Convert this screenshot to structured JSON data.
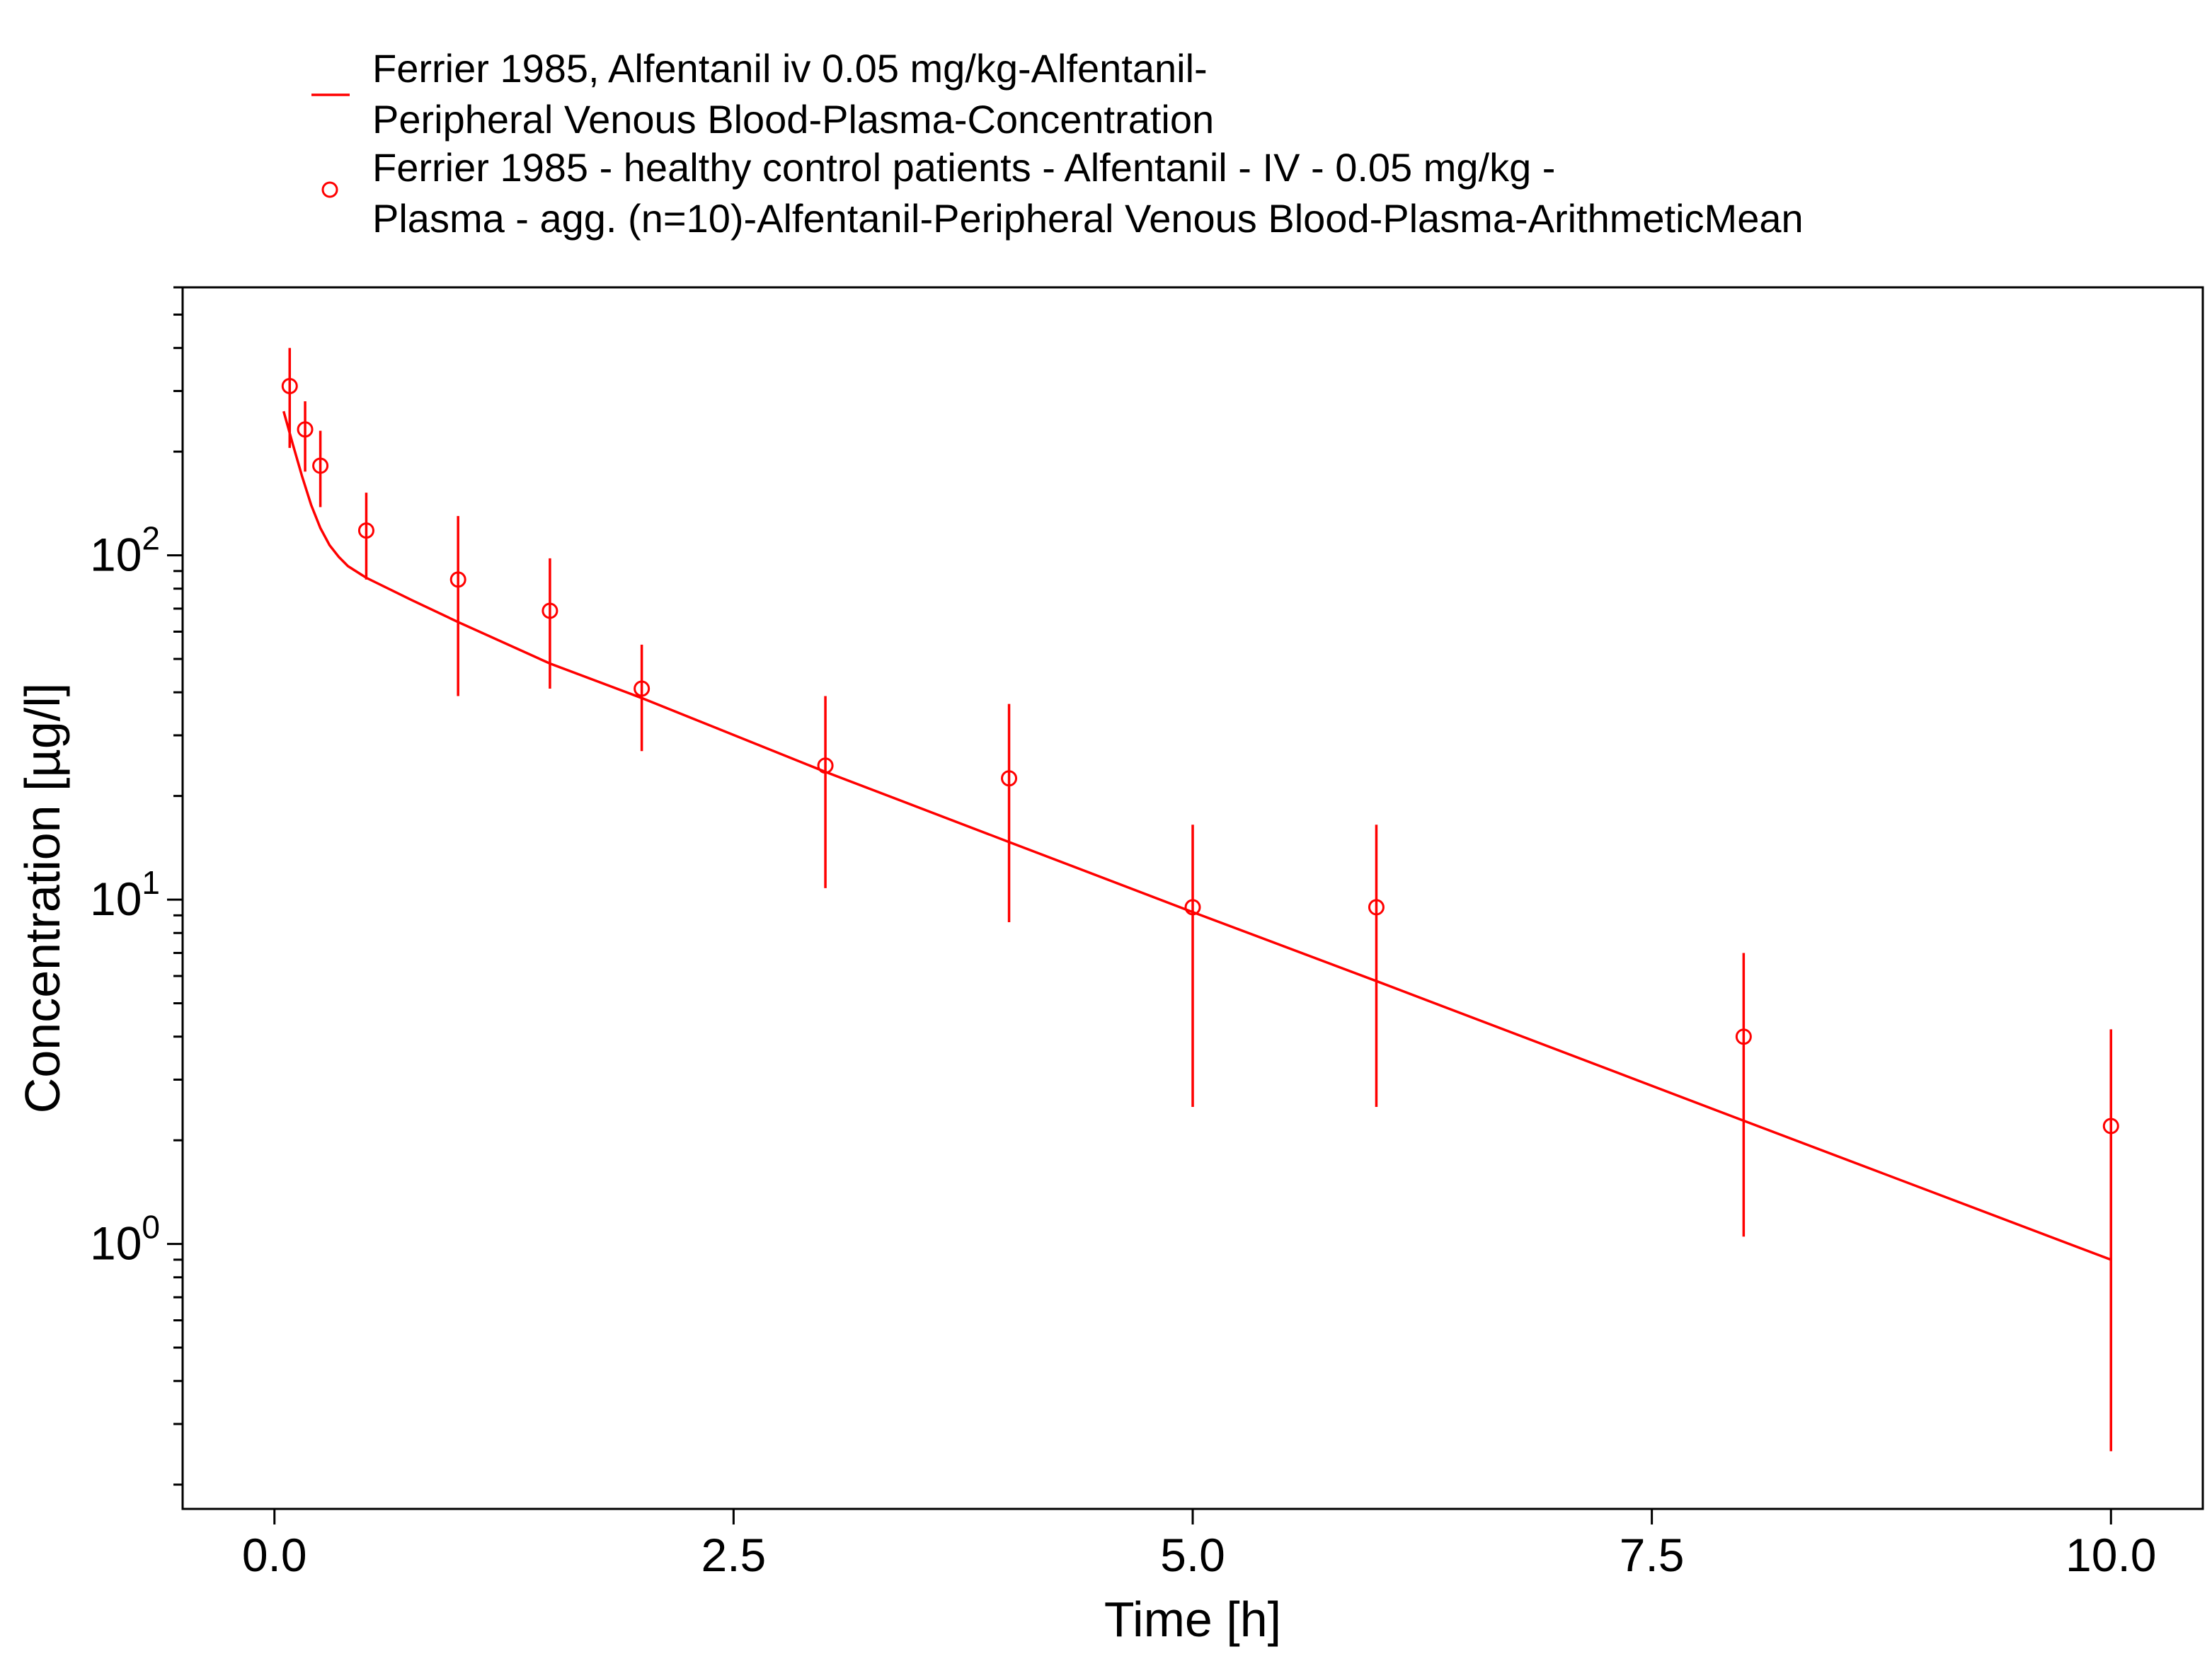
{
  "chart_data": {
    "type": "line",
    "xlabel": "Time [h]",
    "ylabel": "Concentration [µg/l]",
    "xlim": [
      -0.5,
      10.5
    ],
    "ylim": [
      0.17,
      600
    ],
    "yscale": "log",
    "x_ticks": [
      0.0,
      2.5,
      5.0,
      7.5,
      10.0
    ],
    "x_tick_labels": [
      "0.0",
      "2.5",
      "5.0",
      "7.5",
      "10.0"
    ],
    "y_major_ticks": [
      {
        "value": 1,
        "base": "10",
        "exp": "0"
      },
      {
        "value": 10,
        "base": "10",
        "exp": "1"
      },
      {
        "value": 100,
        "base": "10",
        "exp": "2"
      }
    ],
    "grid": false,
    "legend_position": "top",
    "color": "#ff0000",
    "series": [
      {
        "name": "Ferrier 1985, Alfentanil iv 0.05 mg/kg-Alfentanil-Peripheral Venous Blood-Plasma-Concentration",
        "legend_lines": [
          "Ferrier 1985, Alfentanil iv 0.05 mg/kg-Alfentanil-",
          "Peripheral Venous Blood-Plasma-Concentration"
        ],
        "kind": "line",
        "x": [
          0.05,
          0.1,
          0.15,
          0.2,
          0.25,
          0.3,
          0.35,
          0.4,
          0.5,
          0.75,
          1.0,
          1.5,
          2.0,
          3.0,
          4.0,
          5.0,
          6.0,
          8.0,
          10.0
        ],
        "y": [
          262,
          210,
          170,
          140,
          120,
          107,
          99,
          93,
          86,
          74,
          64,
          48.5,
          38.5,
          23.5,
          14.7,
          9.2,
          5.8,
          2.28,
          0.9
        ]
      },
      {
        "name": "Ferrier 1985 - healthy control patients - Alfentanil - IV - 0.05 mg/kg - Plasma - agg. (n=10)-Alfentanil-Peripheral Venous Blood-Plasma-ArithmeticMean",
        "legend_lines": [
          "Ferrier 1985 - healthy control patients - Alfentanil - IV - 0.05 mg/kg -",
          "Plasma - agg. (n=10)-Alfentanil-Peripheral Venous Blood-Plasma-ArithmeticMean"
        ],
        "kind": "scatter-errorbar",
        "x": [
          0.083,
          0.167,
          0.25,
          0.5,
          1.0,
          1.5,
          2.0,
          3.0,
          4.0,
          5.0,
          6.0,
          8.0,
          10.0
        ],
        "y": [
          310,
          232,
          182,
          118,
          85,
          69,
          41,
          24.5,
          22.5,
          9.5,
          9.5,
          4.0,
          2.2
        ],
        "y_low": [
          205,
          175,
          138,
          85,
          39,
          41,
          27,
          10.8,
          8.6,
          2.5,
          2.5,
          1.05,
          0.25
        ],
        "y_high": [
          400,
          280,
          230,
          152,
          130,
          98,
          55,
          39,
          37,
          16.5,
          16.5,
          7.0,
          4.2
        ]
      }
    ]
  }
}
